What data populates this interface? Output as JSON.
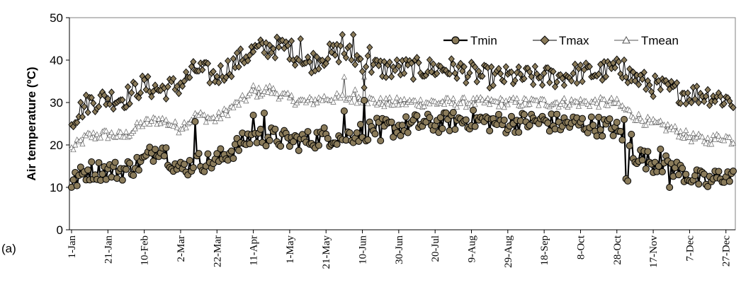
{
  "chart_data": {
    "type": "line",
    "panel_label": "(a)",
    "ylabel": "Air temperature (ºC)",
    "xlabel": "",
    "ylim": [
      0,
      50
    ],
    "yticks": [
      0,
      10,
      20,
      30,
      40,
      50
    ],
    "grid": false,
    "legend_position": "top-right",
    "x_tick_labels": [
      "1-Jan",
      "21-Jan",
      "10-Feb",
      "2-Mar",
      "22-Mar",
      "11-Apr",
      "1-May",
      "21-May",
      "10-Jun",
      "30-Jun",
      "20-Jul",
      "9-Aug",
      "29-Aug",
      "18-Sep",
      "8-Oct",
      "28-Oct",
      "17-Nov",
      "7-Dec",
      "27-Dec"
    ],
    "x_tick_days": [
      1,
      21,
      41,
      61,
      81,
      101,
      121,
      141,
      161,
      181,
      201,
      221,
      241,
      261,
      281,
      301,
      321,
      341,
      361
    ],
    "x_range_days": [
      1,
      365
    ],
    "anchors": {
      "Tmin": [
        [
          1,
          11
        ],
        [
          10,
          14
        ],
        [
          20,
          14
        ],
        [
          30,
          14
        ],
        [
          40,
          16
        ],
        [
          50,
          20
        ],
        [
          60,
          14
        ],
        [
          70,
          16
        ],
        [
          80,
          16
        ],
        [
          90,
          19
        ],
        [
          100,
          22
        ],
        [
          110,
          22
        ],
        [
          120,
          21
        ],
        [
          130,
          21
        ],
        [
          140,
          22
        ],
        [
          150,
          22
        ],
        [
          160,
          23
        ],
        [
          170,
          24
        ],
        [
          180,
          24
        ],
        [
          190,
          25
        ],
        [
          200,
          25
        ],
        [
          210,
          25.5
        ],
        [
          220,
          26
        ],
        [
          230,
          25.5
        ],
        [
          240,
          25
        ],
        [
          250,
          25.5
        ],
        [
          260,
          25.5
        ],
        [
          270,
          25
        ],
        [
          280,
          25
        ],
        [
          290,
          24.5
        ],
        [
          300,
          24
        ],
        [
          310,
          18
        ],
        [
          320,
          16
        ],
        [
          330,
          15
        ],
        [
          340,
          13
        ],
        [
          350,
          11
        ],
        [
          360,
          13
        ],
        [
          365,
          12
        ]
      ],
      "Tmax": [
        [
          1,
          26
        ],
        [
          10,
          30
        ],
        [
          20,
          31
        ],
        [
          30,
          31
        ],
        [
          40,
          34
        ],
        [
          50,
          33
        ],
        [
          60,
          34
        ],
        [
          70,
          38
        ],
        [
          80,
          36
        ],
        [
          90,
          39
        ],
        [
          100,
          42
        ],
        [
          110,
          43
        ],
        [
          120,
          43
        ],
        [
          130,
          39
        ],
        [
          140,
          41
        ],
        [
          150,
          42
        ],
        [
          160,
          40
        ],
        [
          170,
          38
        ],
        [
          180,
          38
        ],
        [
          190,
          38
        ],
        [
          200,
          38
        ],
        [
          210,
          38
        ],
        [
          220,
          37
        ],
        [
          230,
          36
        ],
        [
          240,
          36
        ],
        [
          250,
          36
        ],
        [
          260,
          36
        ],
        [
          270,
          36
        ],
        [
          280,
          37
        ],
        [
          290,
          37
        ],
        [
          300,
          38
        ],
        [
          310,
          36
        ],
        [
          320,
          34
        ],
        [
          330,
          33
        ],
        [
          340,
          32
        ],
        [
          350,
          32
        ],
        [
          360,
          31
        ],
        [
          365,
          30
        ]
      ],
      "Tmean": [
        [
          1,
          19
        ],
        [
          10,
          22
        ],
        [
          20,
          22.5
        ],
        [
          30,
          22
        ],
        [
          40,
          25
        ],
        [
          50,
          26
        ],
        [
          60,
          24
        ],
        [
          70,
          27
        ],
        [
          80,
          26
        ],
        [
          90,
          29
        ],
        [
          100,
          32
        ],
        [
          110,
          33
        ],
        [
          120,
          31
        ],
        [
          130,
          30
        ],
        [
          140,
          31
        ],
        [
          150,
          31
        ],
        [
          160,
          31
        ],
        [
          170,
          30
        ],
        [
          180,
          30
        ],
        [
          190,
          30
        ],
        [
          200,
          30
        ],
        [
          210,
          30
        ],
        [
          220,
          30
        ],
        [
          230,
          30
        ],
        [
          240,
          30
        ],
        [
          250,
          30
        ],
        [
          260,
          30
        ],
        [
          270,
          30
        ],
        [
          280,
          30
        ],
        [
          290,
          30
        ],
        [
          300,
          30
        ],
        [
          310,
          27
        ],
        [
          320,
          25
        ],
        [
          330,
          24
        ],
        [
          340,
          22
        ],
        [
          350,
          21
        ],
        [
          360,
          22
        ],
        [
          365,
          21
        ]
      ]
    },
    "noise_amplitude": {
      "Tmin": 2.4,
      "Tmax": 2.6,
      "Tmean": 1.2
    },
    "spikes": {
      "Tmin": [
        [
          69,
          25.5
        ],
        [
          101,
          27
        ],
        [
          107,
          27.5
        ],
        [
          151,
          28
        ],
        [
          162,
          30.5
        ],
        [
          171,
          21
        ],
        [
          305,
          26
        ],
        [
          306,
          12
        ],
        [
          307,
          11.5
        ],
        [
          309,
          22.5
        ],
        [
          325,
          19
        ],
        [
          330,
          10
        ]
      ],
      "Tmax": [
        [
          127,
          45
        ],
        [
          150,
          46
        ],
        [
          156,
          46
        ],
        [
          162,
          33.5
        ],
        [
          165,
          43
        ],
        [
          305,
          40
        ],
        [
          306,
          36
        ]
      ],
      "Tmean": [
        [
          101,
          34
        ],
        [
          151,
          36
        ],
        [
          157,
          33
        ],
        [
          162,
          36
        ]
      ]
    },
    "series": [
      {
        "name": "Tmin",
        "color": "#000000",
        "marker": "circle",
        "marker_fill": "#8a7b5a"
      },
      {
        "name": "Tmax",
        "color": "#000000",
        "marker": "diamond",
        "marker_fill": "#8a7b5a"
      },
      {
        "name": "Tmean",
        "color": "#555555",
        "marker": "triangle",
        "marker_fill": "#ffffff"
      }
    ]
  }
}
